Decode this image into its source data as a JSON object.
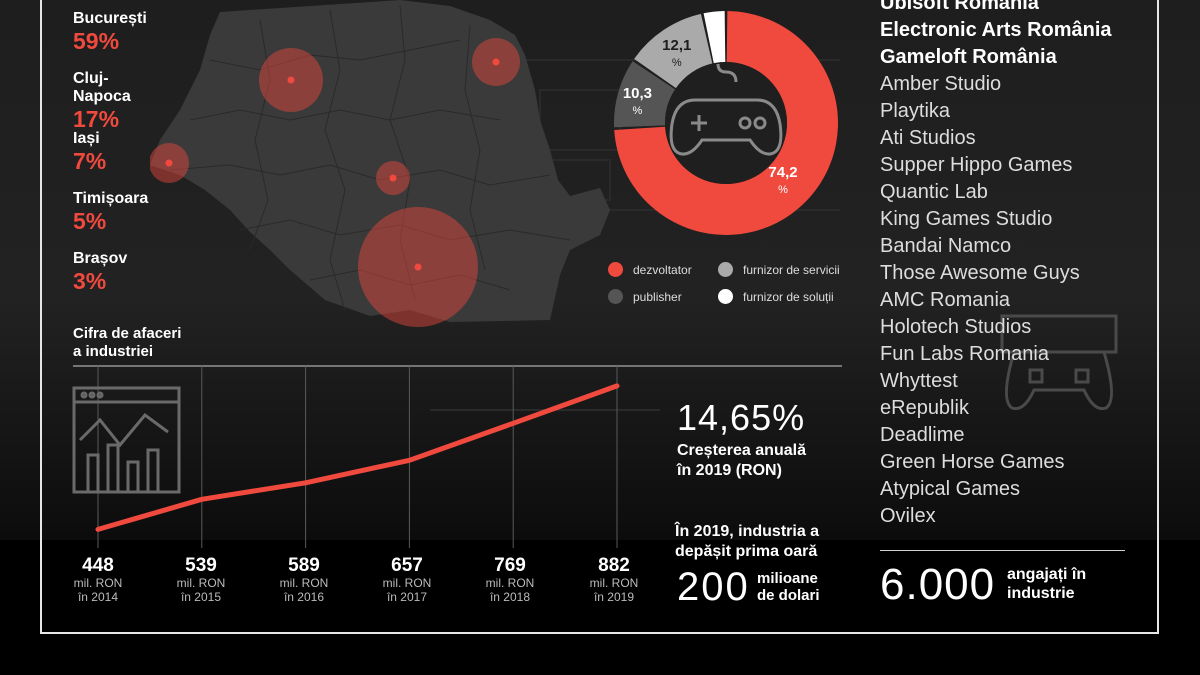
{
  "cities": [
    {
      "name": "București",
      "pct": "59%",
      "share": 59
    },
    {
      "name": "Cluj-Napoca",
      "pct": "17%",
      "share": 17
    },
    {
      "name": "Iași",
      "pct": "7%",
      "share": 7
    },
    {
      "name": "Timișoara",
      "pct": "5%",
      "share": 5
    },
    {
      "name": "Brașov",
      "pct": "3%",
      "share": 3
    }
  ],
  "colors": {
    "accent": "#f0493e",
    "dark_gray": "#555555",
    "light_gray": "#aaaaaa",
    "white": "#ffffff",
    "map": "#3a3a3a"
  },
  "chart_data": [
    {
      "type": "pie",
      "donut": true,
      "slices": [
        {
          "name": "dezvoltator",
          "value": 74.2,
          "label": "74,2",
          "unit": "%",
          "color": "#f0493e"
        },
        {
          "name": "publisher",
          "value": 10.3,
          "label": "10,3",
          "unit": "%",
          "color": "#555555"
        },
        {
          "name": "furnizor de servicii",
          "value": 12.1,
          "label": "12,1",
          "unit": "%",
          "color": "#aaaaaa"
        },
        {
          "name": "furnizor de soluții",
          "value": 3.4,
          "label": "",
          "unit": "",
          "color": "#ffffff"
        }
      ],
      "legend_placement": "bottom",
      "center_icon": "gamepad-icon"
    },
    {
      "type": "line",
      "title": "Cifra de afaceri a industriei",
      "title_lines": [
        "Cifra de afaceri",
        "a industriei"
      ],
      "x": [
        2014,
        2015,
        2016,
        2017,
        2018,
        2019
      ],
      "values": [
        448,
        539,
        589,
        657,
        769,
        882
      ],
      "value_labels": [
        "448",
        "539",
        "589",
        "657",
        "769",
        "882"
      ],
      "unit_label": "mil. RON",
      "year_labels": [
        "în 2014",
        "în 2015",
        "în 2016",
        "în 2017",
        "în 2018",
        "în 2019"
      ],
      "color": "#f0493e",
      "ylim": [
        440,
        900
      ],
      "grid": "vertical"
    }
  ],
  "growth": {
    "value": "14,65%",
    "lines": [
      "Creșterea anuală",
      "în 2019 (RON)"
    ]
  },
  "milestone": {
    "lines": [
      "În 2019, industria a",
      "depășit prima oară"
    ],
    "number": "200",
    "unit_lines": [
      "milioane",
      "de dolari"
    ]
  },
  "studios_bold": [
    "Ubisoft România",
    "Electronic Arts România",
    "Gameloft România"
  ],
  "studios": [
    "Amber Studio",
    "Playtika",
    "Ati Studios",
    "Supper Hippo Games",
    "Quantic Lab",
    "King Games Studio",
    "Bandai Namco",
    "Those Awesome Guys",
    "AMC Romania",
    "Holotech Studios",
    "Fun Labs Romania",
    "Whyttest",
    "eRepublik",
    "Deadlime",
    "Green Horse Games",
    "Atypical Games",
    "Ovilex"
  ],
  "employees": {
    "number": "6.000",
    "lines": [
      "angajați în",
      "industrie"
    ]
  }
}
